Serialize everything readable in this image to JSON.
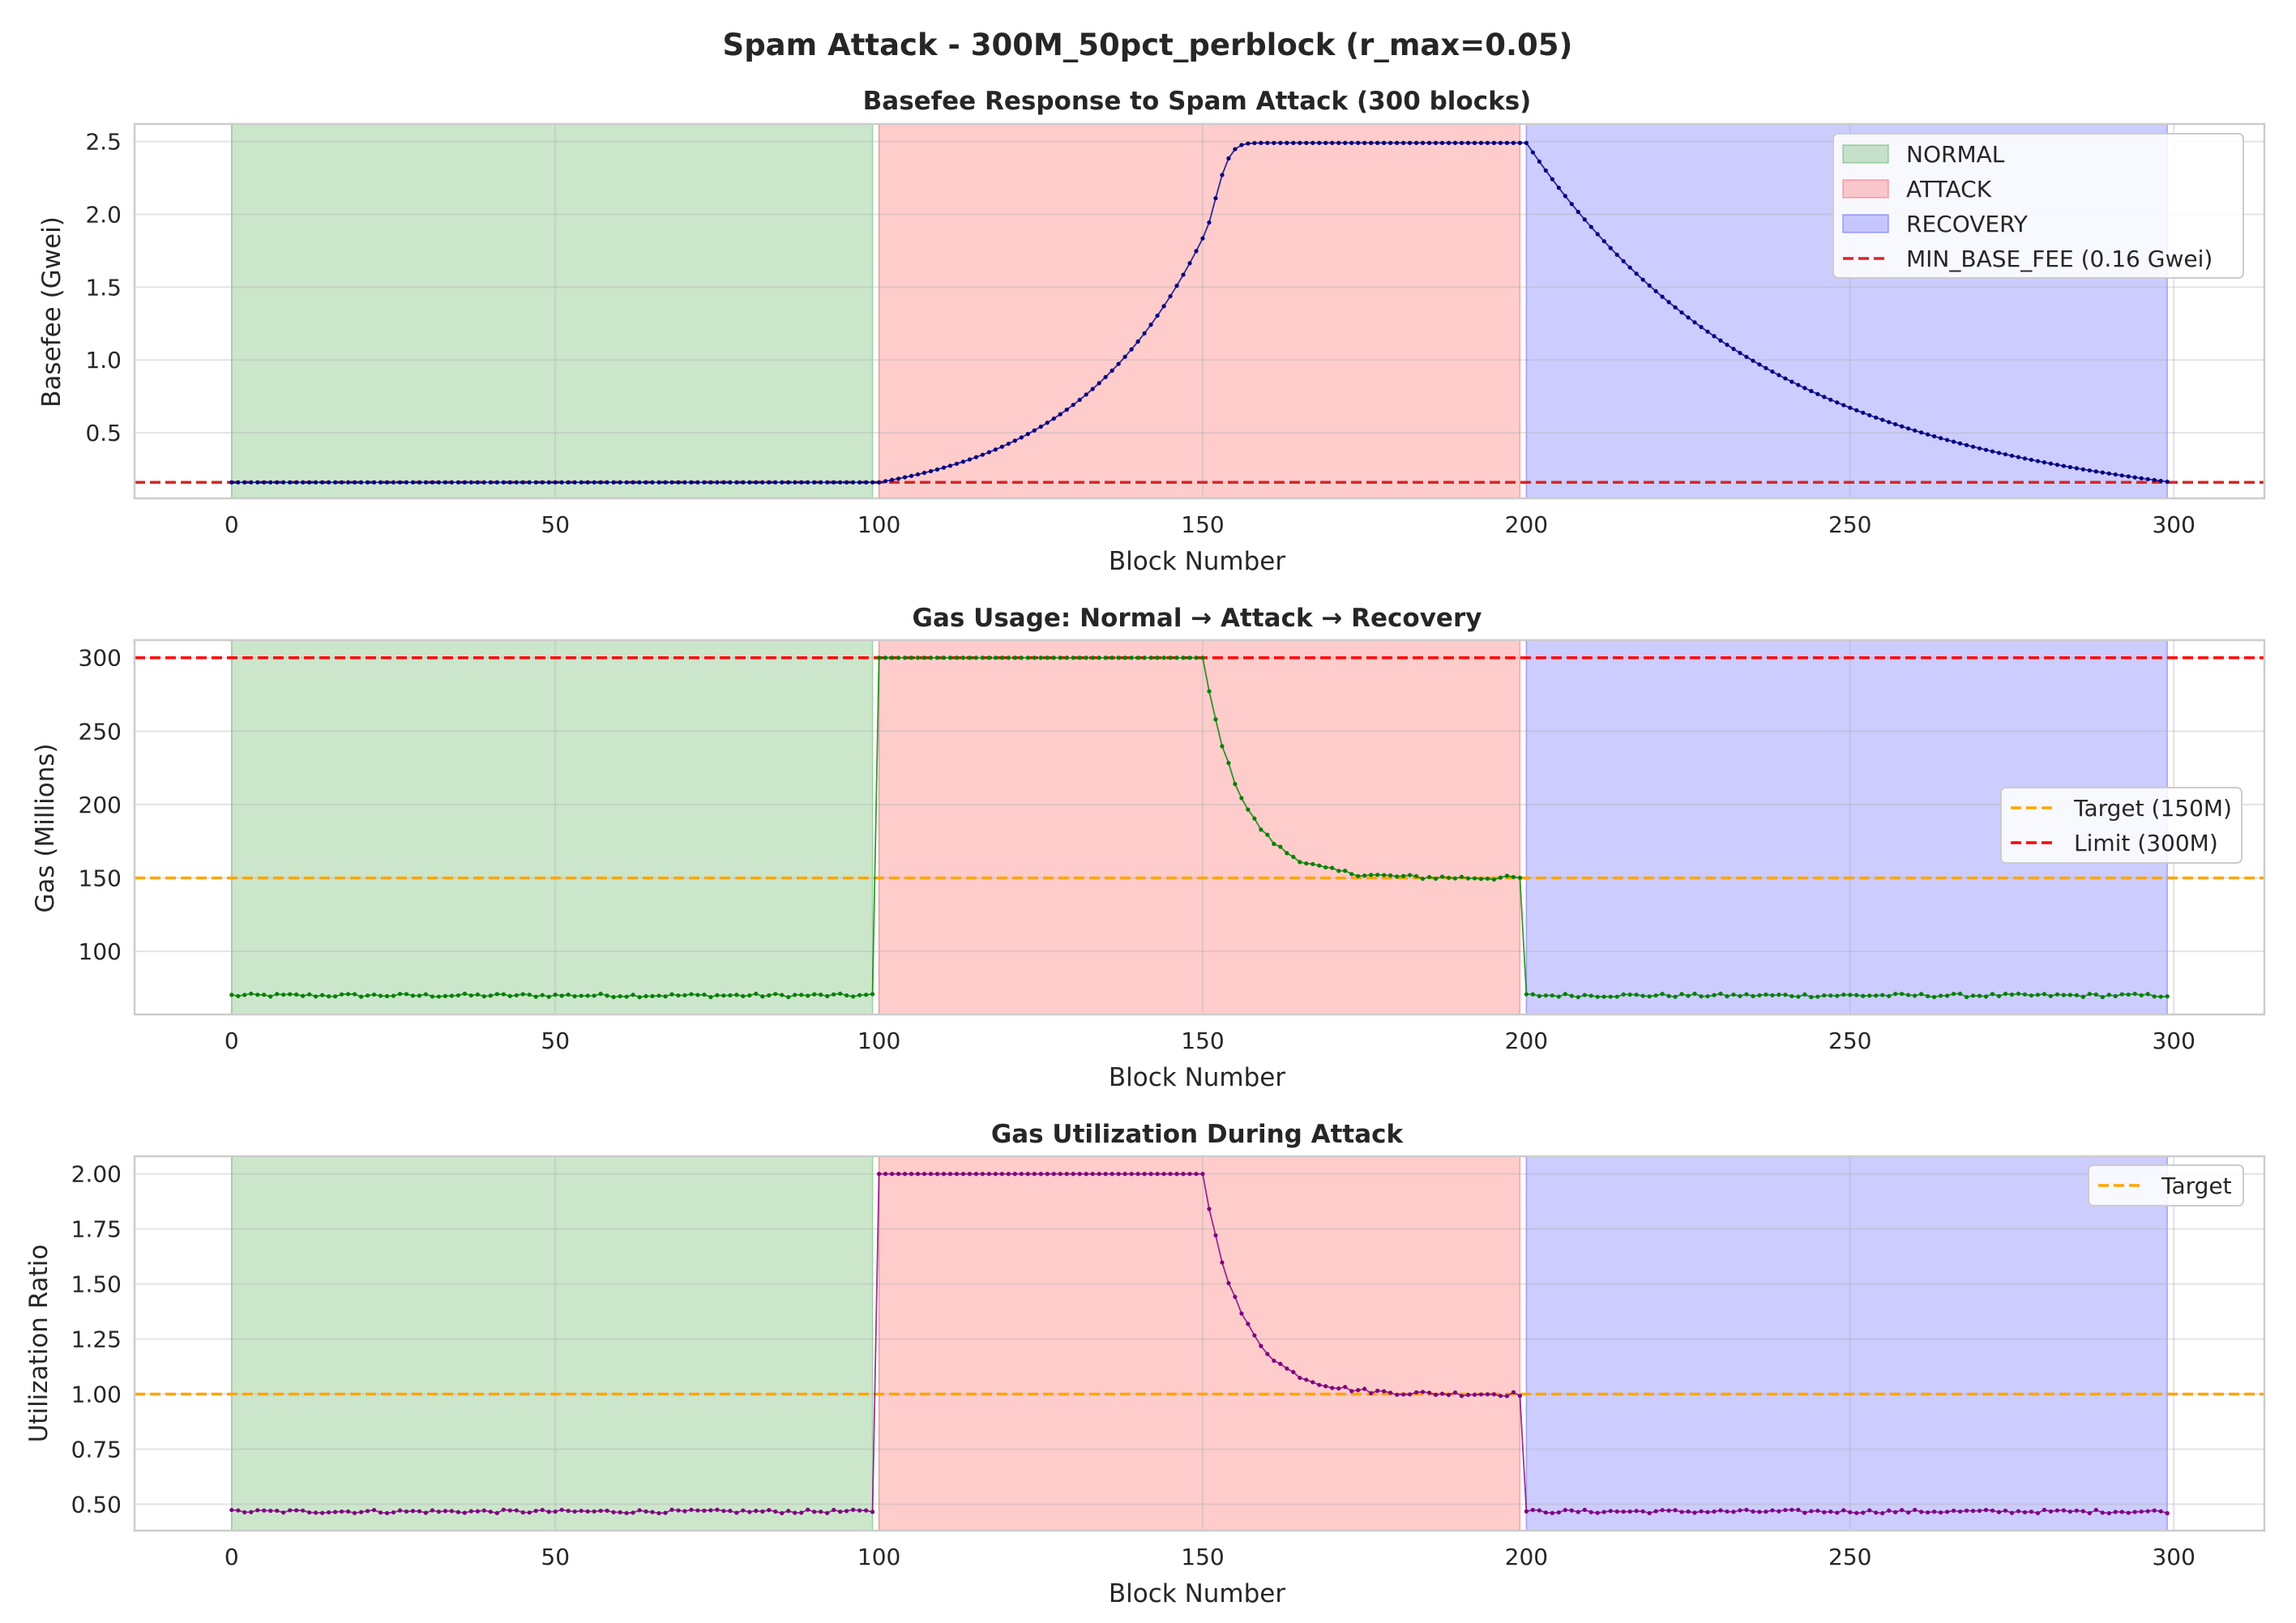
{
  "figure": {
    "suptitle": "Spam Attack - 300M_50pct_perblock (r_max=0.05)"
  },
  "phases": [
    {
      "name": "NORMAL",
      "start": 0,
      "end": 99,
      "color": "#008000",
      "alpha": 0.2
    },
    {
      "name": "ATTACK",
      "start": 100,
      "end": 199,
      "color": "#ff0000",
      "alpha": 0.2
    },
    {
      "name": "RECOVERY",
      "start": 200,
      "end": 299,
      "color": "#0000ff",
      "alpha": 0.2
    }
  ],
  "chart_data": [
    {
      "type": "line",
      "title": "Basefee Response to Spam Attack (300 blocks)",
      "xlabel": "Block Number",
      "ylabel": "Basefee (Gwei)",
      "xlim": [
        -15,
        314
      ],
      "ylim": [
        0.05,
        2.62
      ],
      "xticks": [
        0,
        50,
        100,
        150,
        200,
        250,
        300
      ],
      "yticks": [
        0.5,
        1.0,
        1.5,
        2.0,
        2.5
      ],
      "ytick_labels": [
        "0.5",
        "1.0",
        "1.5",
        "2.0",
        "2.5"
      ],
      "grid": true,
      "legend_position": "upper-right",
      "legend": [
        {
          "kind": "patch",
          "label": "NORMAL",
          "color": "#008000"
        },
        {
          "kind": "patch",
          "label": "ATTACK",
          "color": "#ff0000"
        },
        {
          "kind": "patch",
          "label": "RECOVERY",
          "color": "#0000ff"
        },
        {
          "kind": "dash",
          "label": "MIN_BASE_FEE (0.16 Gwei)",
          "color": "#d62728"
        }
      ],
      "hlines": [
        {
          "y": 0.16,
          "color": "#d62728"
        }
      ],
      "series": [
        {
          "color": "#000080",
          "model": {
            "segments": [
              {
                "from": 0,
                "to": 99,
                "kind": "constant",
                "value": 0.16
              },
              {
                "from": 100,
                "to": 150,
                "kind": "exponential",
                "start": 0.16,
                "rate": 0.05
              },
              {
                "from": 151,
                "to": 200,
                "kind": "approach",
                "end": 2.49,
                "tau": 5.5
              },
              {
                "from": 201,
                "to": 299,
                "kind": "decay",
                "start": 2.49,
                "end": 0.16,
                "rate": 0.0276
              }
            ]
          }
        }
      ]
    },
    {
      "type": "line",
      "title": "Gas Usage: Normal → Attack → Recovery",
      "xlabel": "Block Number",
      "ylabel": "Gas (Millions)",
      "xlim": [
        -15,
        314
      ],
      "ylim": [
        57,
        312
      ],
      "xticks": [
        0,
        50,
        100,
        150,
        200,
        250,
        300
      ],
      "yticks": [
        100,
        150,
        200,
        250,
        300
      ],
      "ytick_labels": [
        "100",
        "150",
        "200",
        "250",
        "300"
      ],
      "grid": true,
      "legend_position": "center-right",
      "legend": [
        {
          "kind": "dash",
          "label": "Target (150M)",
          "color": "#ffa500"
        },
        {
          "kind": "dash",
          "label": "Limit (300M)",
          "color": "#ff0000"
        }
      ],
      "hlines": [
        {
          "y": 150,
          "color": "#ffa500"
        },
        {
          "y": 300,
          "color": "#ff0000"
        }
      ],
      "series": [
        {
          "color": "#008000",
          "model": {
            "segments": [
              {
                "from": 0,
                "to": 99,
                "kind": "noisy",
                "value": 70,
                "noise": 1.2
              },
              {
                "from": 100,
                "to": 150,
                "kind": "constant",
                "value": 300
              },
              {
                "from": 151,
                "to": 199,
                "kind": "relax",
                "start": 300,
                "end": 150,
                "tau": 6,
                "noise": 1.5
              },
              {
                "from": 200,
                "to": 299,
                "kind": "noisy",
                "value": 70,
                "noise": 1.2
              }
            ]
          }
        }
      ]
    },
    {
      "type": "line",
      "title": "Gas Utilization During Attack",
      "xlabel": "Block Number",
      "ylabel": "Utilization Ratio",
      "xlim": [
        -15,
        314
      ],
      "ylim": [
        0.38,
        2.08
      ],
      "xticks": [
        0,
        50,
        100,
        150,
        200,
        250,
        300
      ],
      "yticks": [
        0.5,
        0.75,
        1.0,
        1.25,
        1.5,
        1.75,
        2.0
      ],
      "ytick_labels": [
        "0.50",
        "0.75",
        "1.00",
        "1.25",
        "1.50",
        "1.75",
        "2.00"
      ],
      "grid": true,
      "legend_position": "upper-right",
      "legend": [
        {
          "kind": "dash",
          "label": "Target",
          "color": "#ffa500"
        }
      ],
      "hlines": [
        {
          "y": 1.0,
          "color": "#ffa500"
        }
      ],
      "series": [
        {
          "color": "#800080",
          "model": {
            "segments": [
              {
                "from": 0,
                "to": 99,
                "kind": "noisy",
                "value": 0.467,
                "noise": 0.008
              },
              {
                "from": 100,
                "to": 150,
                "kind": "constant",
                "value": 2.0
              },
              {
                "from": 151,
                "to": 199,
                "kind": "relax",
                "start": 2.0,
                "end": 1.0,
                "tau": 6,
                "noise": 0.01
              },
              {
                "from": 200,
                "to": 299,
                "kind": "noisy",
                "value": 0.467,
                "noise": 0.008
              }
            ]
          }
        }
      ]
    }
  ]
}
